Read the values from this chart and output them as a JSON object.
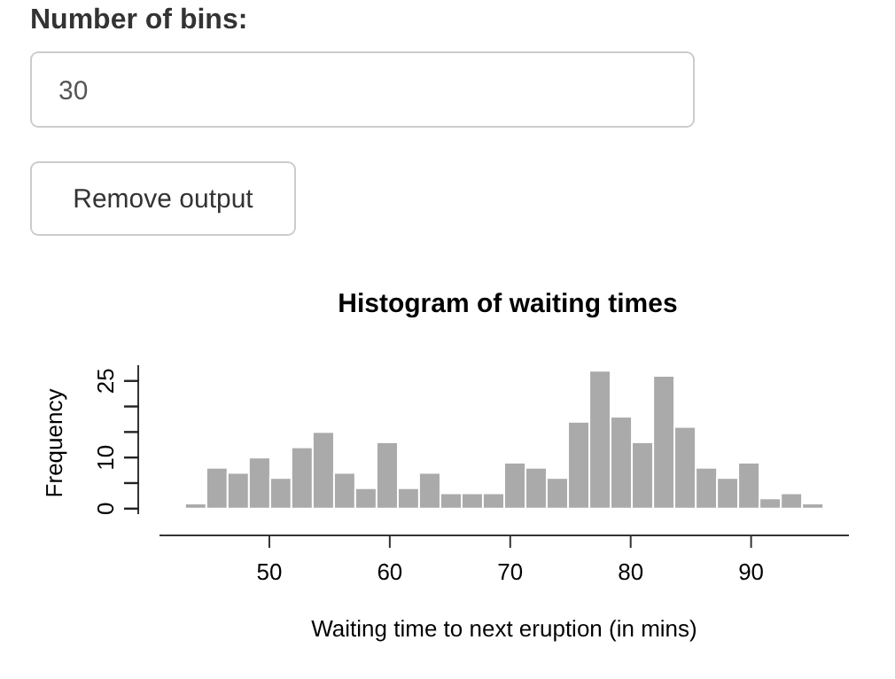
{
  "chart_data": [
    {
      "type": "other",
      "title": "Number of bins:",
      "annotations": [
        "30",
        "Remove output"
      ]
    },
    {
      "type": "histogram",
      "title": "Histogram of waiting times",
      "xlabel": "Waiting time to next eruption (in mins)",
      "ylabel": "Frequency",
      "color": "#aaaaaa",
      "bins": [
        43,
        44.77,
        46.53,
        48.3,
        50.07,
        51.83,
        53.6,
        55.37,
        57.13,
        58.9,
        60.67,
        62.43,
        64.2,
        65.97,
        67.73,
        69.5,
        71.27,
        73.03,
        74.8,
        76.57,
        78.33,
        80.1,
        81.87,
        83.63,
        85.4,
        87.17,
        88.93,
        90.7,
        92.47,
        94.23,
        96
      ],
      "values": [
        1,
        8,
        7,
        10,
        6,
        12,
        15,
        7,
        4,
        13,
        4,
        7,
        3,
        3,
        3,
        9,
        8,
        6,
        17,
        27,
        18,
        13,
        26,
        16,
        8,
        6,
        9,
        2,
        3,
        1
      ],
      "xlim": [
        40.88,
        98.12
      ],
      "xticks": [
        50,
        60,
        70,
        80,
        90
      ],
      "ylim": [
        -1.08,
        28.08
      ],
      "yticks": [
        0,
        {
          "value": 5,
          "label": null
        },
        10,
        {
          "value": 15,
          "label": null
        },
        {
          "value": 20,
          "label": null
        },
        25
      ]
    }
  ]
}
